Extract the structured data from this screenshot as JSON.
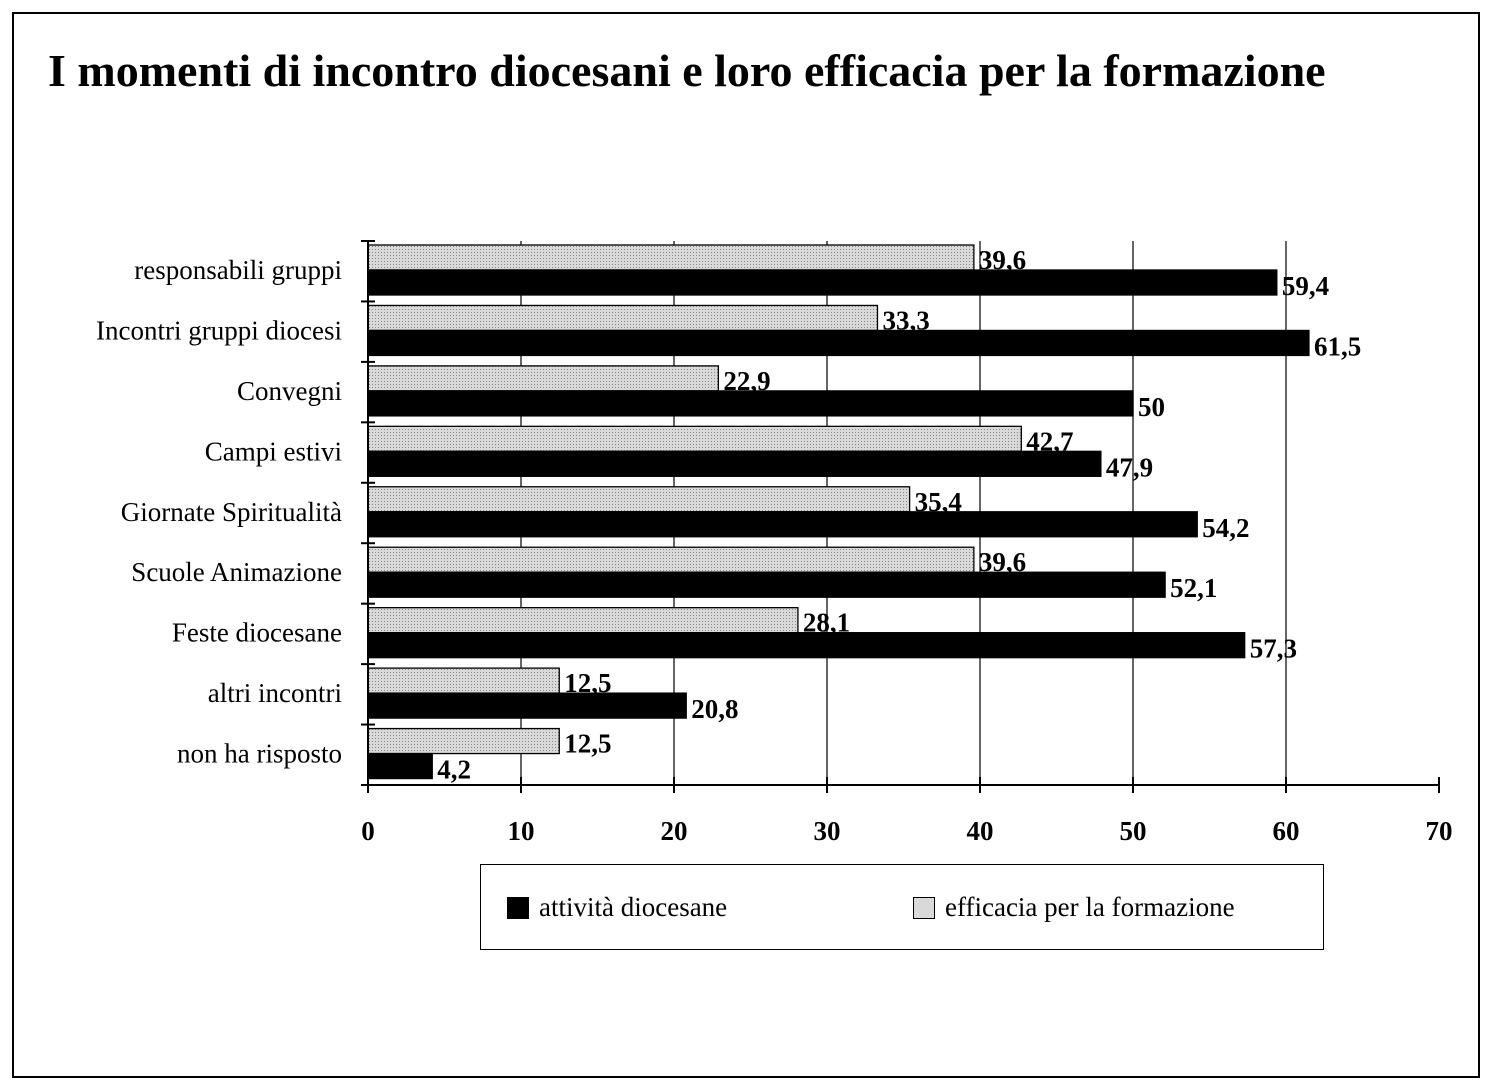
{
  "title": "I momenti di incontro diocesani e loro efficacia per la formazione",
  "colors": {
    "attivita": "#000000",
    "efficacia_fill": "#d9d9d9",
    "efficacia_dots": "#8a8a8a"
  },
  "chart_data": {
    "type": "bar",
    "orientation": "horizontal",
    "title": "I momenti di incontro diocesani e loro efficacia per la formazione",
    "xlabel": "",
    "ylabel": "",
    "xlim": [
      0,
      70
    ],
    "xticks": [
      "0",
      "10",
      "20",
      "30",
      "40",
      "50",
      "60",
      "70"
    ],
    "grid": "vertical gridlines",
    "legend_position": "bottom",
    "categories": [
      "responsabili gruppi",
      "Incontri gruppi diocesi",
      "Convegni",
      "Campi estivi",
      "Giornate Spiritualità",
      "Scuole Animazione",
      "Feste diocesane",
      "altri incontri",
      "non ha risposto"
    ],
    "series": [
      {
        "name": "efficacia per la formazione",
        "values": [
          39.6,
          33.3,
          22.9,
          42.7,
          35.4,
          39.6,
          28.1,
          12.5,
          12.5
        ],
        "labels": [
          "39,6",
          "33,3",
          "22,9",
          "42,7",
          "35,4",
          "39,6",
          "28,1",
          "12,5",
          "12,5"
        ]
      },
      {
        "name": "attività diocesane",
        "values": [
          59.4,
          61.5,
          50,
          47.9,
          54.2,
          52.1,
          57.3,
          20.8,
          4.2
        ],
        "labels": [
          "59,4",
          "61,5",
          "50",
          "47,9",
          "54,2",
          "52,1",
          "57,3",
          "20,8",
          "4,2"
        ]
      }
    ]
  },
  "legend": {
    "attivita_label": "attività diocesane",
    "efficacia_label": "efficacia per la formazione"
  }
}
